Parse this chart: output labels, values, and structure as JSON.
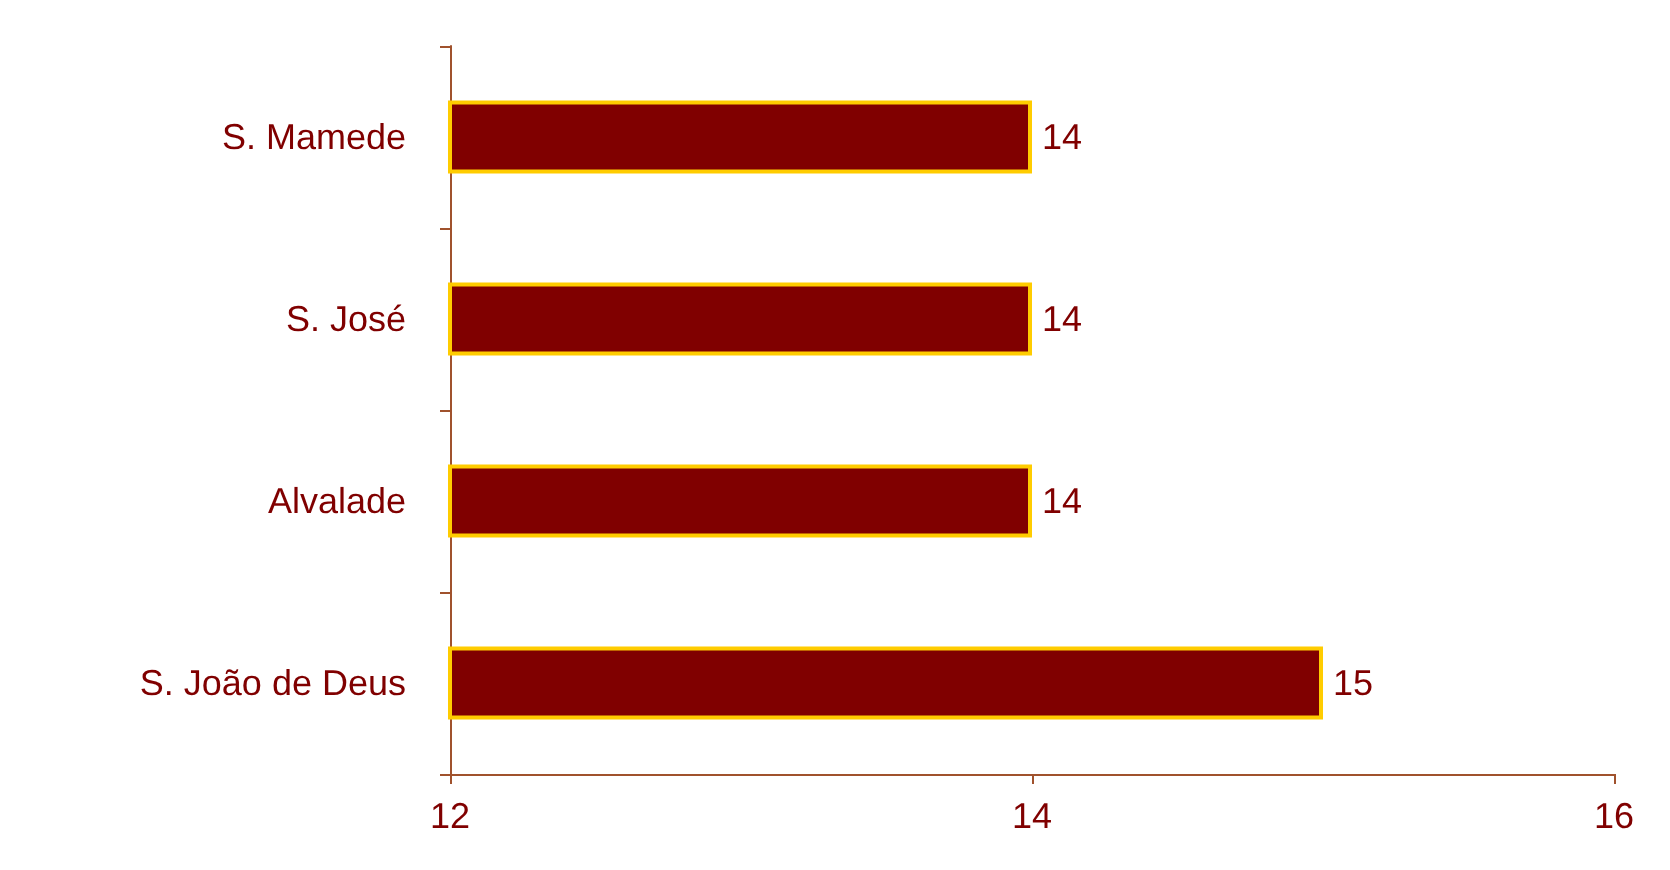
{
  "chart_data": {
    "type": "bar",
    "orientation": "horizontal",
    "categories": [
      "S. Mamede",
      "S. José",
      "Alvalade",
      "S. João de Deus"
    ],
    "values": [
      14,
      14,
      14,
      15
    ],
    "color": "#800000",
    "xlim": [
      12,
      16
    ],
    "xticks": [
      12,
      14,
      16
    ],
    "grid": false,
    "data_labels": true
  }
}
